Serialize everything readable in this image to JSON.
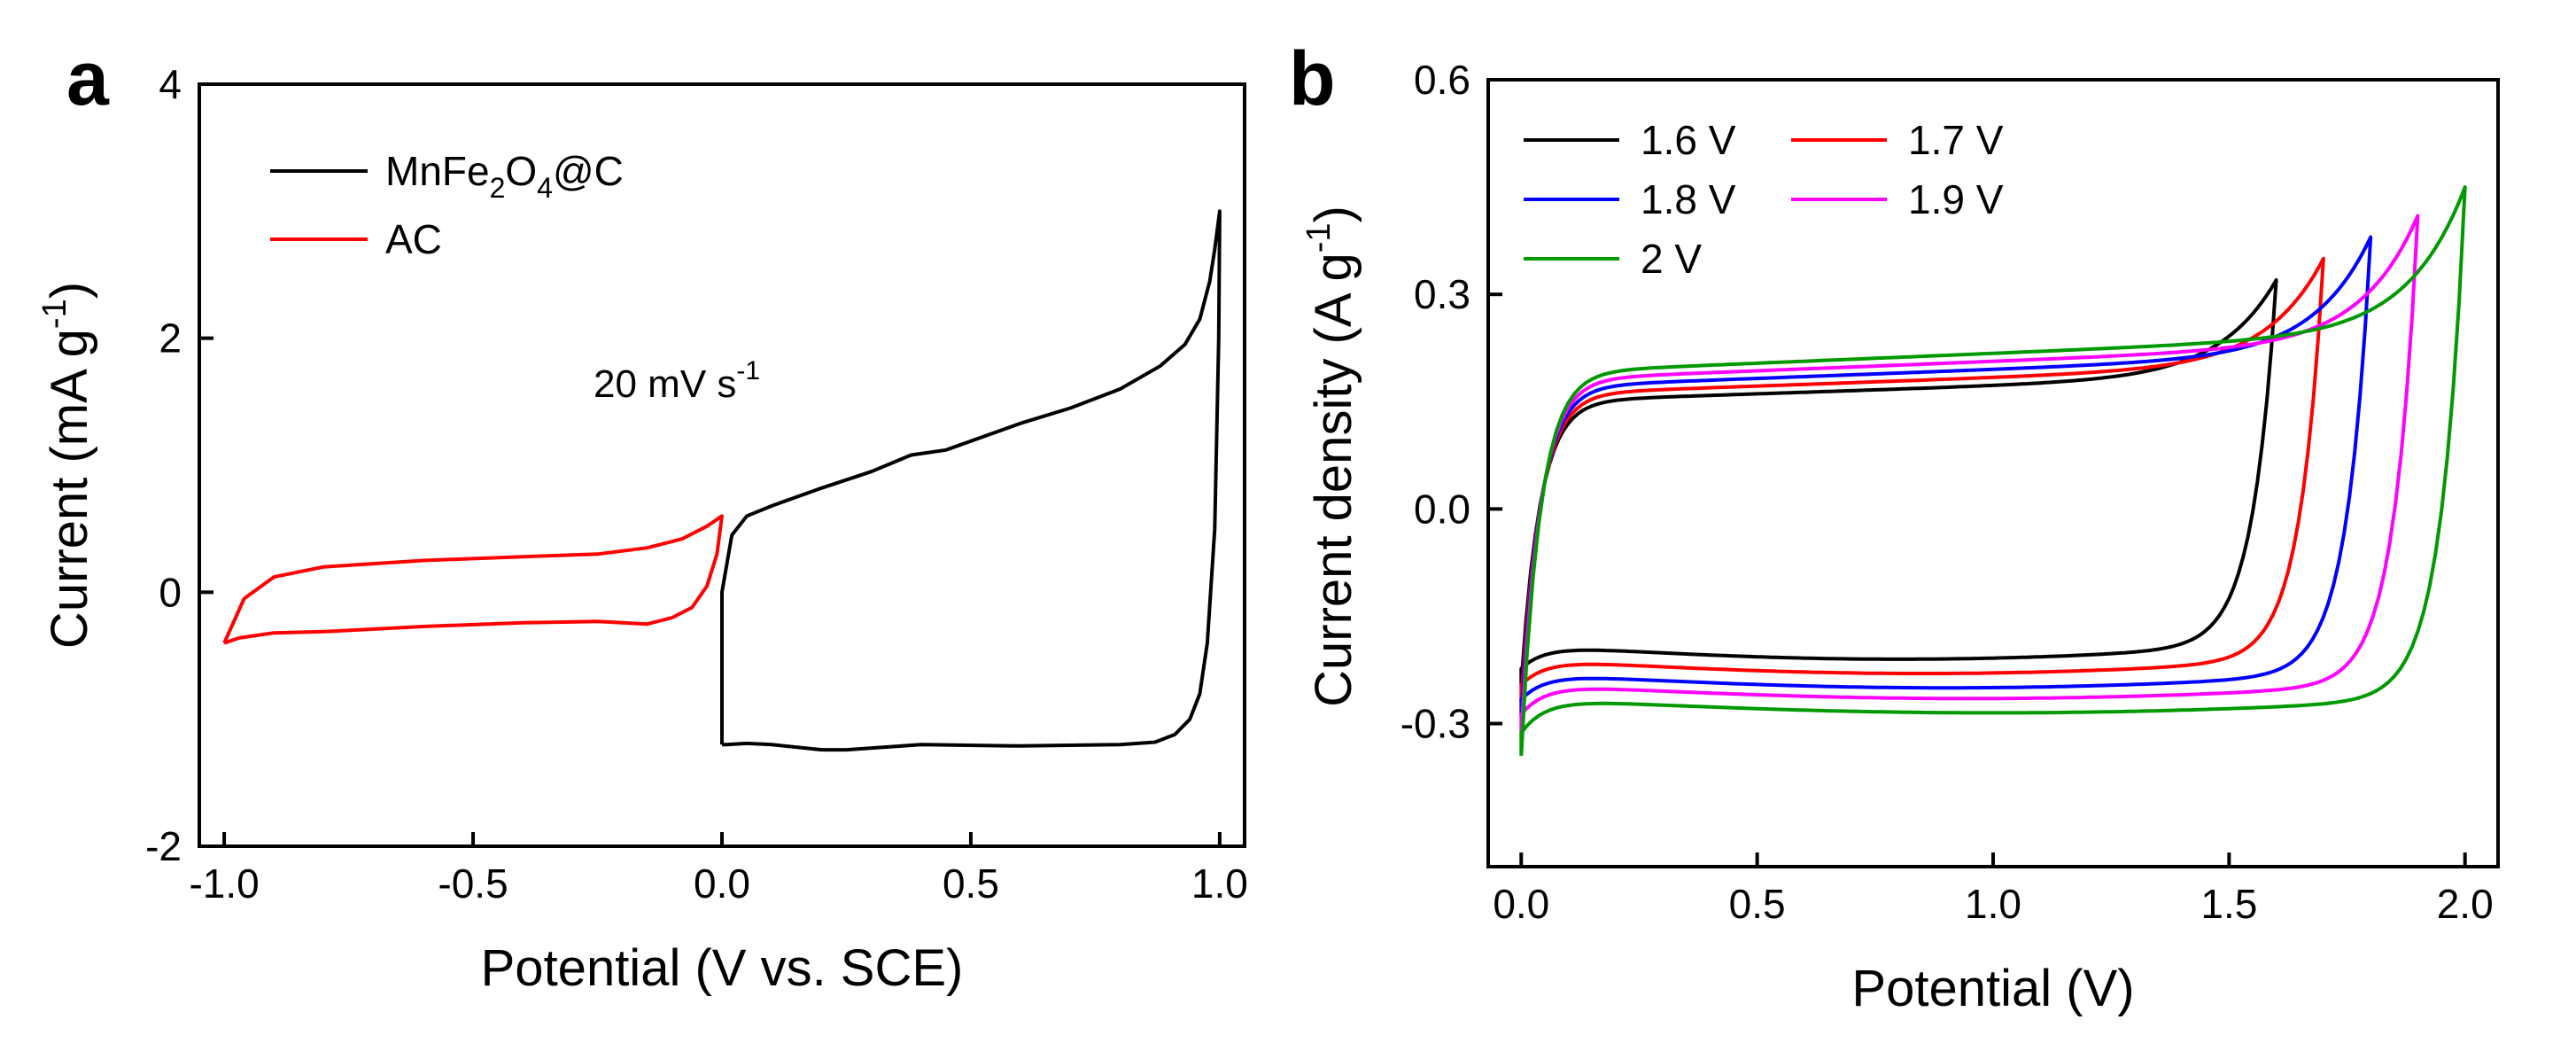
{
  "chart_data": [
    {
      "type": "line",
      "panel": "a",
      "xlabel": "Potential (V vs. SCE)",
      "ylabel_main": "Current (mA g",
      "ylabel_sup": "-1",
      "ylabel_end": ")",
      "xlim": [
        -1.05,
        1.05
      ],
      "ylim": [
        -2,
        4
      ],
      "xticks": [
        -1.0,
        -0.5,
        0.0,
        0.5,
        1.0
      ],
      "xtick_labels": [
        "-1.0",
        "-0.5",
        "0.0",
        "0.5",
        "1.0"
      ],
      "yticks": [
        -2,
        0,
        2,
        4
      ],
      "ytick_labels": [
        "-2",
        "0",
        "2",
        "4"
      ],
      "annotation": {
        "main": "20 mV s",
        "sup": "-1"
      },
      "series": [
        {
          "name": "MnFe2O4@C",
          "legend": {
            "pre": "MnFe",
            "sub1": "2",
            "mid": "O",
            "sub2": "4",
            "post": "@C"
          },
          "color": "#000000",
          "x": [
            0.0,
            0.0,
            0.02,
            0.05,
            0.1,
            0.2,
            0.3,
            0.38,
            0.45,
            0.6,
            0.7,
            0.8,
            0.88,
            0.93,
            0.96,
            0.98,
            0.99,
            1.0,
            0.998,
            0.99,
            0.975,
            0.96,
            0.94,
            0.91,
            0.87,
            0.8,
            0.6,
            0.4,
            0.25,
            0.2,
            0.1,
            0.05,
            0.01,
            0.0
          ],
          "y": [
            -1.2,
            0.0,
            0.45,
            0.6,
            0.68,
            0.82,
            0.95,
            1.08,
            1.12,
            1.33,
            1.45,
            1.6,
            1.78,
            1.95,
            2.15,
            2.45,
            2.7,
            3.0,
            2.0,
            0.5,
            -0.4,
            -0.8,
            -1.0,
            -1.12,
            -1.18,
            -1.2,
            -1.21,
            -1.2,
            -1.24,
            -1.24,
            -1.2,
            -1.19,
            -1.2,
            -1.2
          ]
        },
        {
          "name": "AC",
          "legend": {
            "text": "AC"
          },
          "color": "#ff0000",
          "x": [
            -1.0,
            -0.96,
            -0.9,
            -0.8,
            -0.6,
            -0.4,
            -0.25,
            -0.15,
            -0.08,
            -0.03,
            0.0,
            -0.01,
            -0.03,
            -0.06,
            -0.1,
            -0.15,
            -0.25,
            -0.4,
            -0.6,
            -0.8,
            -0.9,
            -0.97,
            -1.0
          ],
          "y": [
            -0.4,
            -0.05,
            0.12,
            0.2,
            0.25,
            0.28,
            0.3,
            0.35,
            0.42,
            0.52,
            0.6,
            0.3,
            0.05,
            -0.12,
            -0.2,
            -0.25,
            -0.23,
            -0.24,
            -0.27,
            -0.31,
            -0.32,
            -0.36,
            -0.4
          ]
        }
      ]
    },
    {
      "type": "line",
      "panel": "b",
      "xlabel": "Potential (V)",
      "ylabel_main": "Current density (A g",
      "ylabel_sup": "-1",
      "ylabel_end": ")",
      "xlim": [
        -0.07,
        2.07
      ],
      "ylim": [
        -0.5,
        0.6
      ],
      "xticks": [
        0.0,
        0.5,
        1.0,
        1.5,
        2.0
      ],
      "xtick_labels": [
        "0.0",
        "0.5",
        "1.0",
        "1.5",
        "2.0"
      ],
      "yticks": [
        -0.3,
        0.0,
        0.3,
        0.6
      ],
      "ytick_labels": [
        "-0.3",
        "0.0",
        "0.3",
        "0.6"
      ],
      "series": [
        {
          "name": "1.6 V",
          "color": "#000000",
          "vmax": 1.6,
          "upper": 0.15,
          "peak": 0.32,
          "lower": -0.19,
          "start": -0.245,
          "slope_up": 0.035
        },
        {
          "name": "1.7 V",
          "color": "#ff0000",
          "vmax": 1.7,
          "upper": 0.16,
          "peak": 0.35,
          "lower": -0.21,
          "start": -0.27,
          "slope_up": 0.04
        },
        {
          "name": "1.8 V",
          "color": "#0000ff",
          "vmax": 1.8,
          "upper": 0.17,
          "peak": 0.38,
          "lower": -0.23,
          "start": -0.29,
          "slope_up": 0.045
        },
        {
          "name": "1.9 V",
          "color": "#ff00ff",
          "vmax": 1.9,
          "upper": 0.18,
          "peak": 0.41,
          "lower": -0.245,
          "start": -0.315,
          "slope_up": 0.05
        },
        {
          "name": "2 V",
          "color": "#009900",
          "vmax": 2.0,
          "upper": 0.19,
          "peak": 0.45,
          "lower": -0.265,
          "start": -0.345,
          "slope_up": 0.055
        }
      ]
    }
  ]
}
